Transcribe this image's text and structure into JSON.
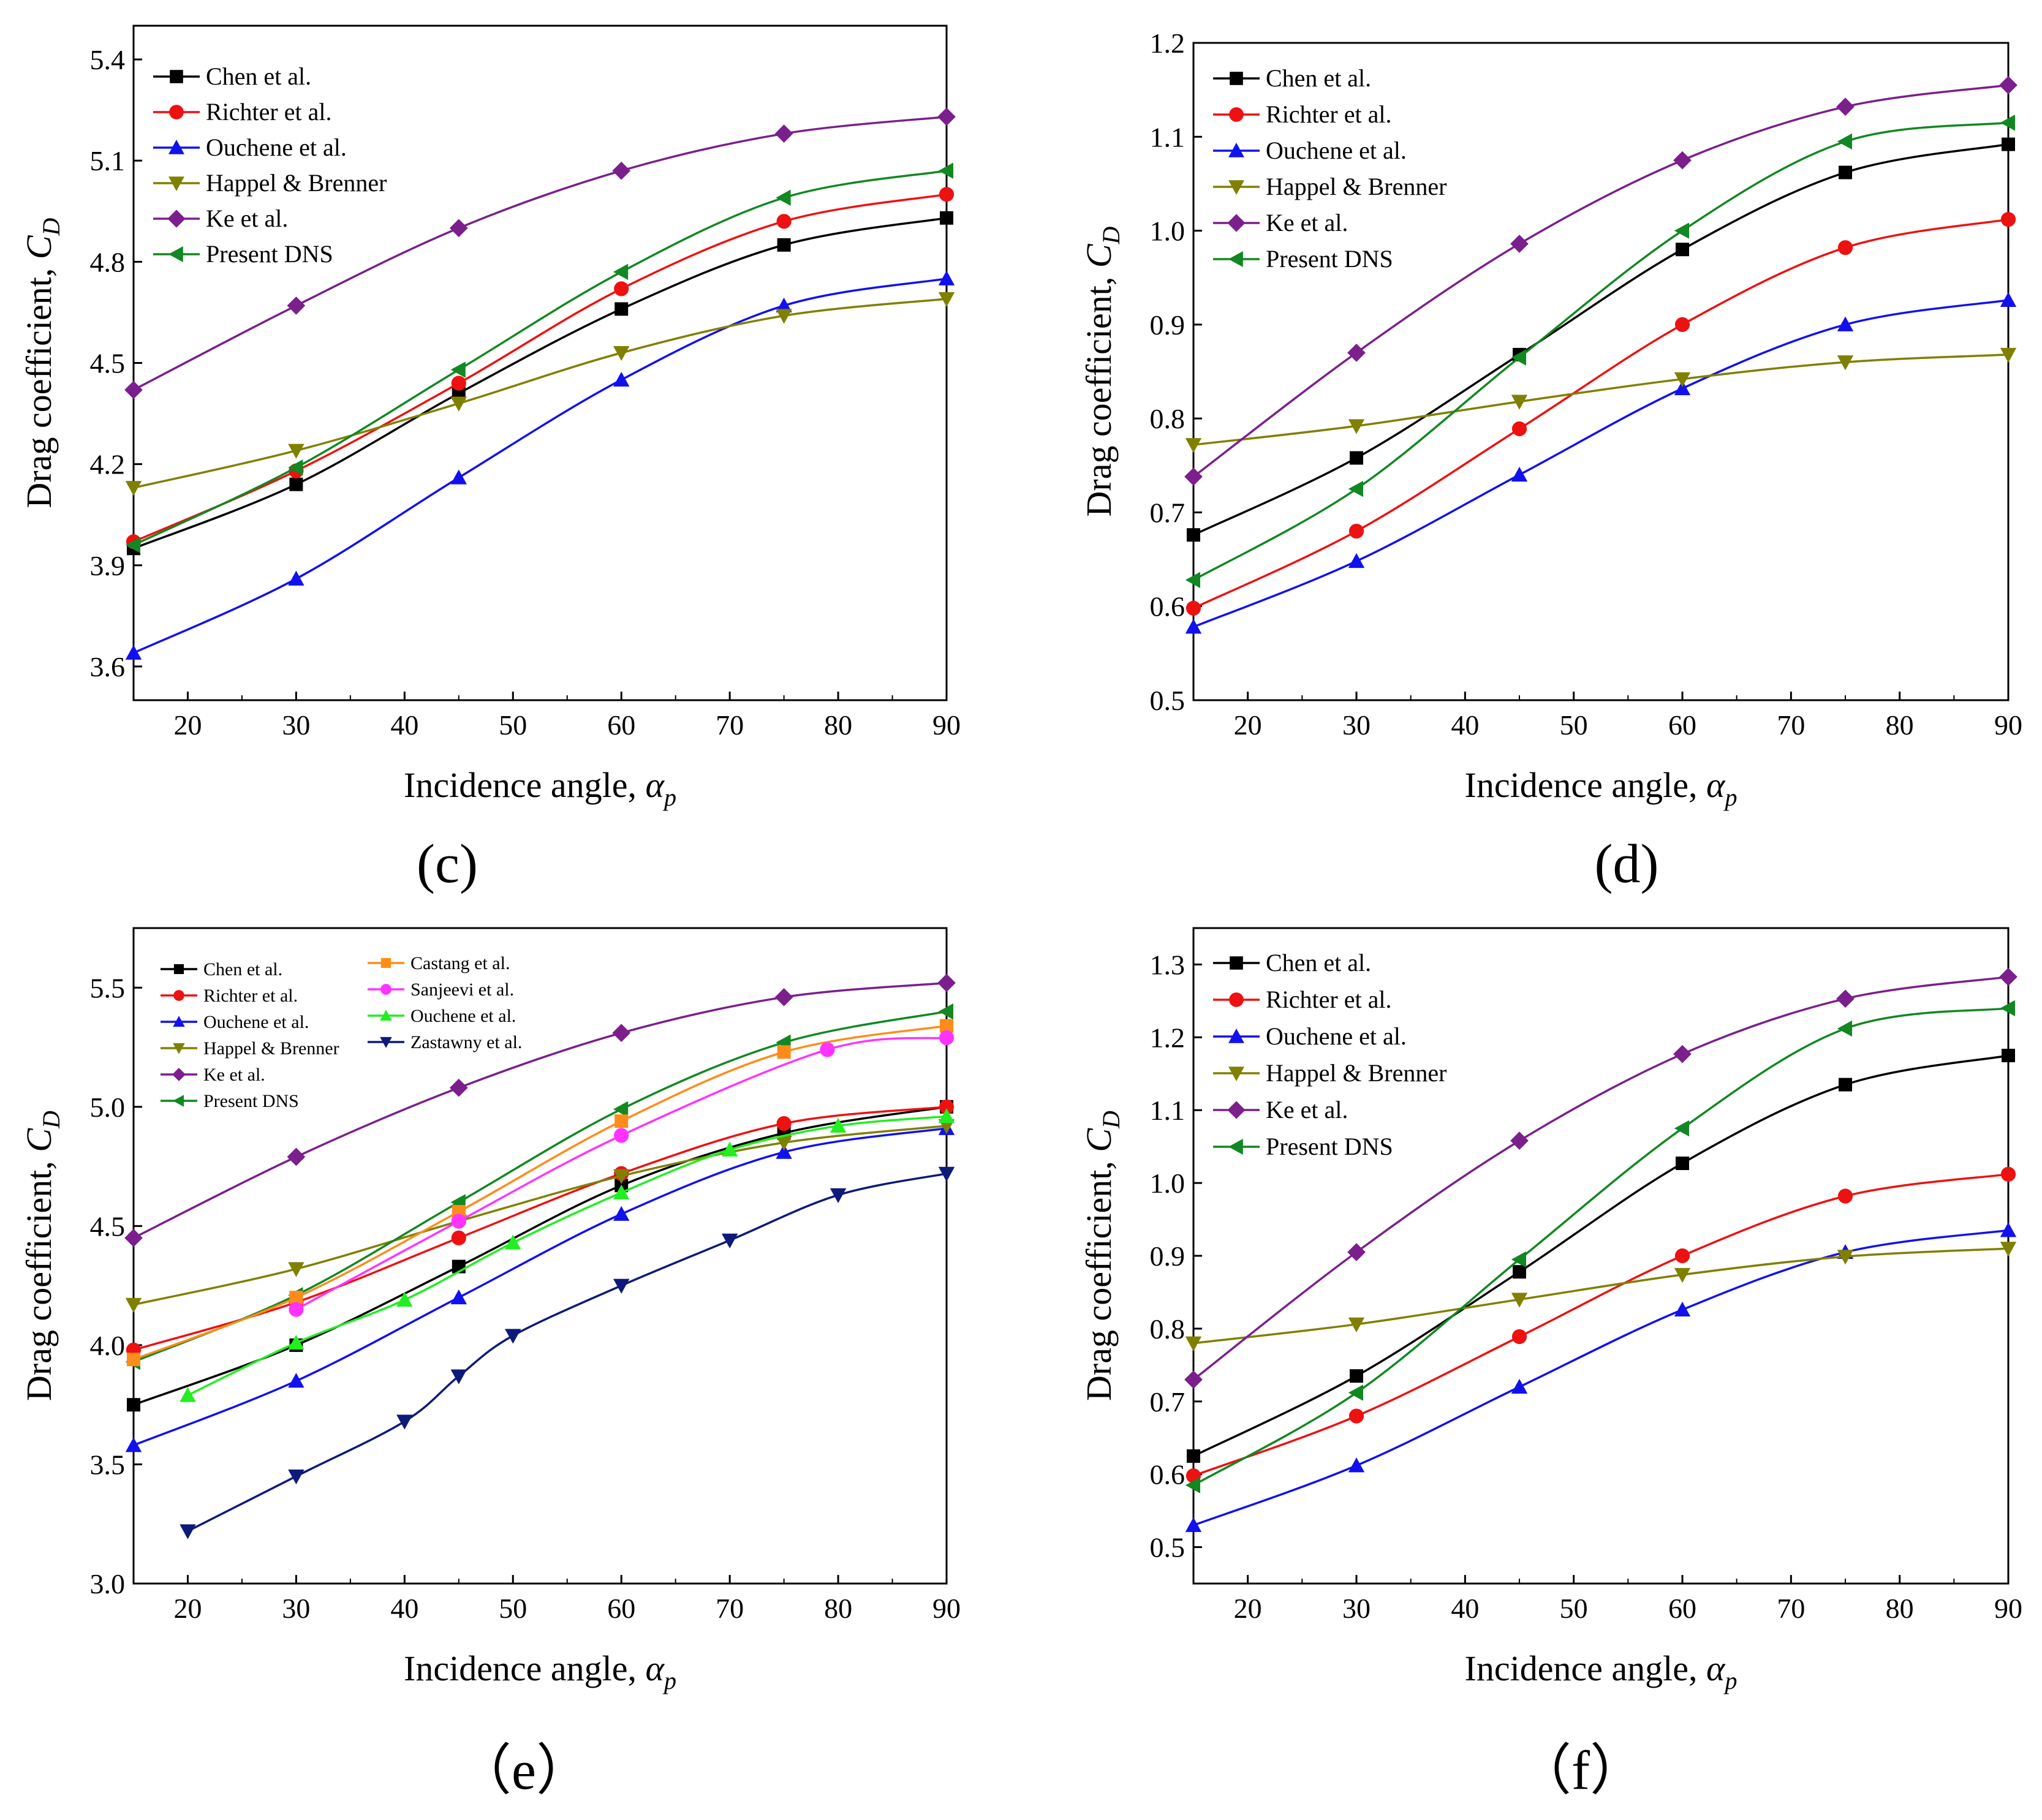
{
  "figure": {
    "colors": {
      "Chen": "#000000",
      "Richter": "#ee1111",
      "Ouchene": "#1111ee",
      "Happel": "#808000",
      "Ke": "#7b1f8c",
      "Present": "#118822",
      "Castang": "#ff8c1a",
      "Sanjeevi": "#ff33ff",
      "OucheneE": "#22ee22",
      "Zastawny": "#0d1a7a"
    }
  },
  "chart_data": [
    {
      "type": "line",
      "panel_label": "(c)",
      "xlabel": "Incidence angle, ",
      "xlabel_symbol": "α",
      "xlabel_sub": "p",
      "ylabel": "Drag coefficient, ",
      "ylabel_symbol": "C",
      "ylabel_sub": "D",
      "xlim": [
        15,
        90
      ],
      "ylim": [
        3.5,
        5.5
      ],
      "xticks": [
        "20",
        "30",
        "40",
        "50",
        "60",
        "70",
        "80",
        "90"
      ],
      "yticks": [
        "3.6",
        "3.9",
        "4.2",
        "4.5",
        "4.8",
        "5.1",
        "5.4"
      ],
      "legend_position": "top-left",
      "series": [
        {
          "name": "Chen et al.",
          "key": "Chen",
          "marker": "square",
          "x": [
            15,
            30,
            45,
            60,
            75,
            90
          ],
          "values": [
            3.95,
            4.14,
            4.41,
            4.66,
            4.85,
            4.93
          ]
        },
        {
          "name": "Richter et al.",
          "key": "Richter",
          "marker": "circle",
          "x": [
            15,
            30,
            45,
            60,
            75,
            90
          ],
          "values": [
            3.97,
            4.18,
            4.44,
            4.72,
            4.92,
            5.0
          ]
        },
        {
          "name": "Ouchene et al.",
          "key": "Ouchene",
          "marker": "triangle-up",
          "x": [
            15,
            30,
            45,
            60,
            75,
            90
          ],
          "values": [
            3.64,
            3.86,
            4.16,
            4.45,
            4.67,
            4.75
          ]
        },
        {
          "name": "Happel & Brenner",
          "key": "Happel",
          "marker": "triangle-down",
          "x": [
            15,
            30,
            45,
            60,
            75,
            90
          ],
          "values": [
            4.13,
            4.24,
            4.38,
            4.53,
            4.64,
            4.69
          ]
        },
        {
          "name": "Ke et al.",
          "key": "Ke",
          "marker": "diamond",
          "x": [
            15,
            30,
            45,
            60,
            75,
            90
          ],
          "values": [
            4.42,
            4.67,
            4.9,
            5.07,
            5.18,
            5.23
          ]
        },
        {
          "name": "Present DNS",
          "key": "Present",
          "marker": "triangle-left",
          "x": [
            15,
            30,
            45,
            60,
            75,
            90
          ],
          "values": [
            3.96,
            4.19,
            4.48,
            4.77,
            4.99,
            5.07
          ]
        }
      ]
    },
    {
      "type": "line",
      "panel_label": "(d)",
      "xlabel": "Incidence angle, ",
      "xlabel_symbol": "α",
      "xlabel_sub": "p",
      "ylabel": "Drag coefficient, ",
      "ylabel_symbol": "C",
      "ylabel_sub": "D",
      "xlim": [
        15,
        90
      ],
      "ylim": [
        0.5,
        1.2
      ],
      "xticks": [
        "20",
        "30",
        "40",
        "50",
        "60",
        "70",
        "80",
        "90"
      ],
      "yticks": [
        "0.5",
        "0.6",
        "0.7",
        "0.8",
        "0.9",
        "1.0",
        "1.1",
        "1.2"
      ],
      "legend_position": "top-left",
      "series": [
        {
          "name": "Chen et al.",
          "key": "Chen",
          "marker": "square",
          "x": [
            15,
            30,
            45,
            60,
            75,
            90
          ],
          "values": [
            0.676,
            0.758,
            0.868,
            0.98,
            1.062,
            1.092
          ]
        },
        {
          "name": "Richter et al.",
          "key": "Richter",
          "marker": "circle",
          "x": [
            15,
            30,
            45,
            60,
            75,
            90
          ],
          "values": [
            0.598,
            0.68,
            0.789,
            0.9,
            0.982,
            1.012
          ]
        },
        {
          "name": "Ouchene et al.",
          "key": "Ouchene",
          "marker": "triangle-up",
          "x": [
            15,
            30,
            45,
            60,
            75,
            90
          ],
          "values": [
            0.578,
            0.648,
            0.74,
            0.832,
            0.9,
            0.926
          ]
        },
        {
          "name": "Happel & Brenner",
          "key": "Happel",
          "marker": "triangle-down",
          "x": [
            15,
            30,
            45,
            60,
            75,
            90
          ],
          "values": [
            0.772,
            0.792,
            0.818,
            0.842,
            0.86,
            0.868
          ]
        },
        {
          "name": "Ke et al.",
          "key": "Ke",
          "marker": "diamond",
          "x": [
            15,
            30,
            45,
            60,
            75,
            90
          ],
          "values": [
            0.738,
            0.87,
            0.986,
            1.075,
            1.132,
            1.155
          ]
        },
        {
          "name": "Present DNS",
          "key": "Present",
          "marker": "triangle-left",
          "x": [
            15,
            30,
            45,
            60,
            75,
            90
          ],
          "values": [
            0.628,
            0.725,
            0.865,
            1.0,
            1.095,
            1.115
          ]
        }
      ]
    },
    {
      "type": "line",
      "panel_label": "（e）",
      "xlabel": "Incidence angle, ",
      "xlabel_symbol": "α",
      "xlabel_sub": "p",
      "ylabel": "Drag coefficient, ",
      "ylabel_symbol": "C",
      "ylabel_sub": "D",
      "xlim": [
        15,
        90
      ],
      "ylim": [
        3.0,
        5.75
      ],
      "xticks": [
        "20",
        "30",
        "40",
        "50",
        "60",
        "70",
        "80",
        "90"
      ],
      "yticks": [
        "3.0",
        "3.5",
        "4.0",
        "4.5",
        "5.0",
        "5.5"
      ],
      "legend_position": "top-left (two columns)",
      "series": [
        {
          "name": "Chen et al.",
          "key": "Chen",
          "marker": "square",
          "x": [
            15,
            30,
            45,
            60,
            75,
            90
          ],
          "values": [
            3.75,
            4.0,
            4.33,
            4.67,
            4.89,
            5.0
          ]
        },
        {
          "name": "Richter et al.",
          "key": "Richter",
          "marker": "circle",
          "x": [
            15,
            30,
            45,
            60,
            75,
            90
          ],
          "values": [
            3.98,
            4.18,
            4.45,
            4.72,
            4.93,
            5.0
          ]
        },
        {
          "name": "Ouchene et al.",
          "key": "Ouchene",
          "marker": "triangle-up",
          "x": [
            15,
            30,
            45,
            60,
            75,
            90
          ],
          "values": [
            3.58,
            3.85,
            4.2,
            4.55,
            4.81,
            4.91
          ]
        },
        {
          "name": "Happel & Brenner",
          "key": "Happel",
          "marker": "triangle-down",
          "x": [
            15,
            30,
            45,
            60,
            75,
            90
          ],
          "values": [
            4.17,
            4.32,
            4.52,
            4.71,
            4.85,
            4.92
          ]
        },
        {
          "name": "Ke et al.",
          "key": "Ke",
          "marker": "diamond",
          "x": [
            15,
            30,
            45,
            60,
            75,
            90
          ],
          "values": [
            4.45,
            4.79,
            5.08,
            5.31,
            5.46,
            5.52
          ]
        },
        {
          "name": "Present DNS",
          "key": "Present",
          "marker": "triangle-left",
          "x": [
            15,
            30,
            45,
            60,
            75,
            90
          ],
          "values": [
            3.93,
            4.21,
            4.6,
            4.99,
            5.27,
            5.4
          ]
        },
        {
          "name": "Castang et al.",
          "key": "Castang",
          "marker": "square",
          "x": [
            15,
            30,
            45,
            60,
            75,
            90
          ],
          "values": [
            3.94,
            4.2,
            4.56,
            4.94,
            5.23,
            5.34
          ]
        },
        {
          "name": "Sanjeevi et al.",
          "key": "Sanjeevi",
          "marker": "circle",
          "x": [
            30,
            45,
            60,
            79,
            90
          ],
          "values": [
            4.15,
            4.52,
            4.88,
            5.24,
            5.29
          ]
        },
        {
          "name": "Ouchene et al.",
          "key": "OucheneE",
          "marker": "triangle-up",
          "x": [
            20,
            30,
            40,
            50,
            60,
            70,
            80,
            90
          ],
          "values": [
            3.79,
            4.01,
            4.19,
            4.43,
            4.64,
            4.82,
            4.92,
            4.96
          ]
        },
        {
          "name": "Zastawny et al.",
          "key": "Zastawny",
          "marker": "triangle-down",
          "x": [
            20,
            30,
            40,
            45,
            50,
            60,
            70,
            80,
            90
          ],
          "values": [
            3.22,
            3.45,
            3.68,
            3.87,
            4.04,
            4.25,
            4.44,
            4.63,
            4.72
          ]
        }
      ]
    },
    {
      "type": "line",
      "panel_label": "（f）",
      "xlabel": "Incidence angle, ",
      "xlabel_symbol": "α",
      "xlabel_sub": "p",
      "ylabel": "Drag coefficient, ",
      "ylabel_symbol": "C",
      "ylabel_sub": "D",
      "xlim": [
        15,
        90
      ],
      "ylim": [
        0.45,
        1.35
      ],
      "xticks": [
        "20",
        "30",
        "40",
        "50",
        "60",
        "70",
        "80",
        "90"
      ],
      "yticks": [
        "0.5",
        "0.6",
        "0.7",
        "0.8",
        "0.9",
        "1.0",
        "1.1",
        "1.2",
        "1.3"
      ],
      "legend_position": "top-left",
      "series": [
        {
          "name": "Chen et al.",
          "key": "Chen",
          "marker": "square",
          "x": [
            15,
            30,
            45,
            60,
            75,
            90
          ],
          "values": [
            0.625,
            0.735,
            0.878,
            1.027,
            1.135,
            1.175
          ]
        },
        {
          "name": "Richter et al.",
          "key": "Richter",
          "marker": "circle",
          "x": [
            15,
            30,
            45,
            60,
            75,
            90
          ],
          "values": [
            0.598,
            0.68,
            0.789,
            0.9,
            0.982,
            1.012
          ]
        },
        {
          "name": "Ouchene et al.",
          "key": "Ouchene",
          "marker": "triangle-up",
          "x": [
            15,
            30,
            45,
            60,
            75,
            90
          ],
          "values": [
            0.53,
            0.612,
            0.72,
            0.826,
            0.905,
            0.935
          ]
        },
        {
          "name": "Happel & Brenner",
          "key": "Happel",
          "marker": "triangle-down",
          "x": [
            15,
            30,
            45,
            60,
            75,
            90
          ],
          "values": [
            0.78,
            0.806,
            0.84,
            0.874,
            0.899,
            0.91
          ]
        },
        {
          "name": "Ke et al.",
          "key": "Ke",
          "marker": "diamond",
          "x": [
            15,
            30,
            45,
            60,
            75,
            90
          ],
          "values": [
            0.73,
            0.905,
            1.058,
            1.177,
            1.253,
            1.283
          ]
        },
        {
          "name": "Present DNS",
          "key": "Present",
          "marker": "triangle-left",
          "x": [
            15,
            30,
            45,
            60,
            75,
            90
          ],
          "values": [
            0.585,
            0.712,
            0.895,
            1.075,
            1.212,
            1.24
          ]
        }
      ]
    }
  ]
}
